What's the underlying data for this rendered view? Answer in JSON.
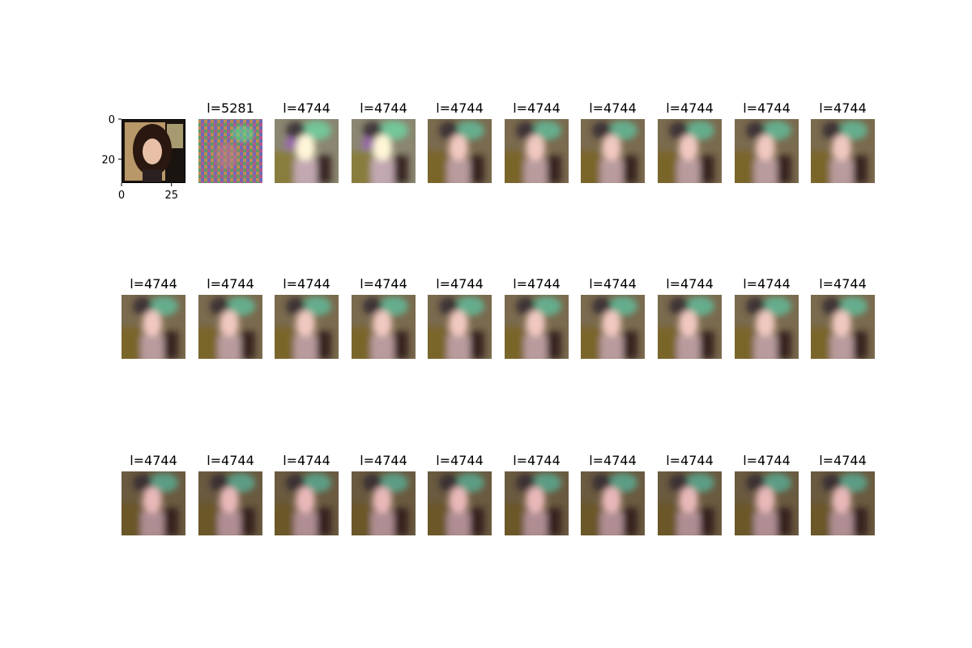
{
  "chart_data": {
    "type": "image-grid",
    "rows": 3,
    "cols": 10,
    "reference_image": {
      "x_ticks": [
        "0",
        "25"
      ],
      "y_ticks": [
        "0",
        "20"
      ],
      "xlim": [
        0,
        32
      ],
      "ylim": [
        32,
        0
      ]
    },
    "panels": [
      {
        "title": ""
      },
      {
        "title": "l=5281"
      },
      {
        "title": "l=4744"
      },
      {
        "title": "l=4744"
      },
      {
        "title": "l=4744"
      },
      {
        "title": "l=4744"
      },
      {
        "title": "l=4744"
      },
      {
        "title": "l=4744"
      },
      {
        "title": "l=4744"
      },
      {
        "title": "l=4744"
      },
      {
        "title": "l=4744"
      },
      {
        "title": "l=4744"
      },
      {
        "title": "l=4744"
      },
      {
        "title": "l=4744"
      },
      {
        "title": "l=4744"
      },
      {
        "title": "l=4744"
      },
      {
        "title": "l=4744"
      },
      {
        "title": "l=4744"
      },
      {
        "title": "l=4744"
      },
      {
        "title": "l=4744"
      },
      {
        "title": "l=4744"
      },
      {
        "title": "l=4744"
      },
      {
        "title": "l=4744"
      },
      {
        "title": "l=4744"
      },
      {
        "title": "l=4744"
      },
      {
        "title": "l=4744"
      },
      {
        "title": "l=4744"
      },
      {
        "title": "l=4744"
      },
      {
        "title": "l=4744"
      },
      {
        "title": "l=4744"
      }
    ]
  }
}
